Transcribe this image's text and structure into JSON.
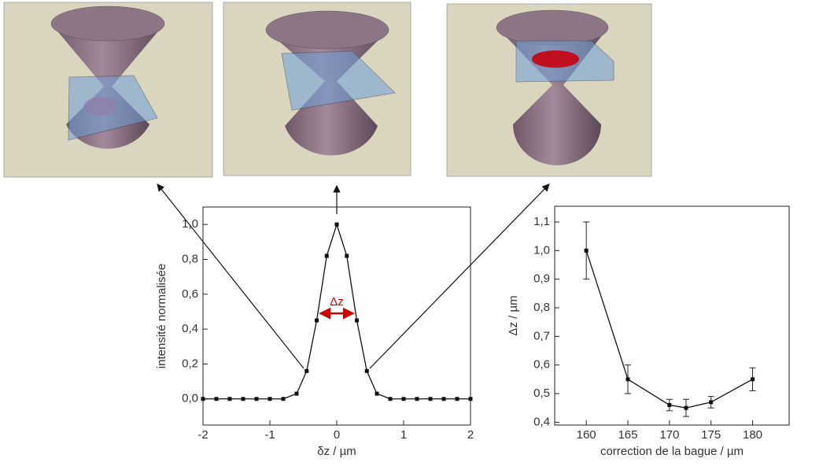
{
  "chart_data": [
    {
      "type": "line",
      "x_label": "δz / µm",
      "y_label": "intensité normalisée",
      "x": [
        -2,
        -1.8,
        -1.6,
        -1.4,
        -1.2,
        -1,
        -0.8,
        -0.6,
        -0.45,
        -0.3,
        -0.15,
        0,
        0.15,
        0.3,
        0.45,
        0.6,
        0.8,
        1,
        1.2,
        1.4,
        1.6,
        1.8,
        2
      ],
      "values": [
        0,
        0,
        0,
        0,
        0,
        0,
        0,
        0.03,
        0.16,
        0.45,
        0.82,
        1.0,
        0.82,
        0.45,
        0.16,
        0.03,
        0,
        0,
        0,
        0,
        0,
        0,
        0
      ],
      "color": "#111111",
      "xlim": [
        -2,
        2
      ],
      "xticks": [
        -2,
        -1,
        0,
        1,
        2
      ],
      "ylim": [
        -0.15,
        1.1
      ],
      "yticks": [
        {
          "value": 0,
          "label": "0,0"
        },
        {
          "value": 0.2,
          "label": "0,2"
        },
        {
          "value": 0.4,
          "label": "0,4"
        },
        {
          "value": 0.6,
          "label": "0,6"
        },
        {
          "value": 0.8,
          "label": "0,8"
        },
        {
          "value": 1.0,
          "label": "1,0"
        }
      ],
      "annotation": {
        "text": "Δz",
        "x": [
          -0.25,
          0.25
        ],
        "y": 0.49,
        "color": "#cc0000"
      }
    },
    {
      "type": "line",
      "x_label": "correction de la bague / µm",
      "y_label": "Δz / µm",
      "x": [
        160,
        165,
        170,
        172,
        175,
        180
      ],
      "values": [
        1.0,
        0.55,
        0.46,
        0.45,
        0.47,
        0.55
      ],
      "errors": [
        0.1,
        0.05,
        0.02,
        0.03,
        0.02,
        0.04
      ],
      "color": "#111111",
      "xlim": [
        156.2,
        184.4
      ],
      "xticks": [
        160,
        165,
        170,
        175,
        180
      ],
      "ylim": [
        0.39,
        1.155
      ],
      "yticks": [
        {
          "value": 0.4,
          "label": "0,4"
        },
        {
          "value": 0.5,
          "label": "0,5"
        },
        {
          "value": 0.6,
          "label": "0,6"
        },
        {
          "value": 0.7,
          "label": "0,7"
        },
        {
          "value": 0.8,
          "label": "0,8"
        },
        {
          "value": 0.9,
          "label": "0,9"
        },
        {
          "value": 1.0,
          "label": "1,0"
        },
        {
          "value": 1.1,
          "label": "1,1"
        }
      ]
    }
  ]
}
